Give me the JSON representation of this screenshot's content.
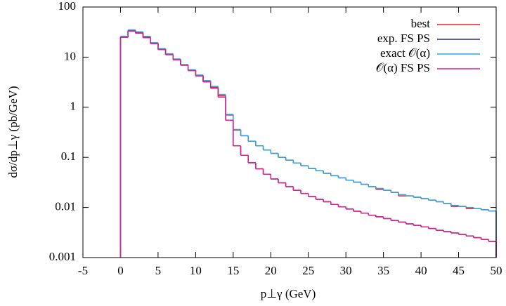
{
  "chart_data": {
    "type": "histogram",
    "xlabel": "p⊥γ (GeV)",
    "ylabel": "dσ/dp⊥γ (pb/GeV)",
    "xlim": [
      -5,
      50
    ],
    "xticks": [
      -5,
      0,
      5,
      10,
      15,
      20,
      25,
      30,
      35,
      40,
      45,
      50
    ],
    "ylim": [
      0.001,
      100
    ],
    "yticks": [
      0.001,
      0.01,
      0.1,
      1,
      10,
      100
    ],
    "ylog": true,
    "legend": "top-right",
    "bins": [
      0,
      1,
      2,
      3,
      4,
      5,
      6,
      7,
      8,
      9,
      10,
      11,
      12,
      13,
      14,
      15,
      16,
      17,
      18,
      19,
      20,
      21,
      22,
      23,
      24,
      25,
      26,
      27,
      28,
      29,
      30,
      31,
      32,
      33,
      34,
      35,
      36,
      37,
      38,
      39,
      40,
      41,
      42,
      43,
      44,
      45,
      46,
      47,
      48,
      49,
      50
    ],
    "series": [
      {
        "name": "best",
        "color": "#e8202a",
        "values": [
          25,
          34,
          31,
          25,
          19,
          14.5,
          11.5,
          9,
          7,
          5.5,
          4.3,
          3.3,
          2.5,
          1.7,
          0.7,
          0.35,
          0.27,
          0.21,
          0.17,
          0.14,
          0.12,
          0.1,
          0.088,
          0.077,
          0.068,
          0.06,
          0.054,
          0.048,
          0.043,
          0.039,
          0.035,
          0.032,
          0.029,
          0.026,
          0.023,
          0.022,
          0.02,
          0.017,
          0.017,
          0.016,
          0.015,
          0.014,
          0.013,
          0.012,
          0.0105,
          0.0105,
          0.0095,
          0.0095,
          0.009,
          0.0085
        ]
      },
      {
        "name": "exp. FS PS",
        "color": "#2a2a8a",
        "values": [
          25,
          33,
          30,
          24.5,
          18.5,
          14.2,
          11.2,
          8.8,
          6.9,
          5.4,
          4.2,
          3.2,
          2.4,
          1.6,
          0.55,
          0.17,
          0.11,
          0.078,
          0.059,
          0.046,
          0.037,
          0.031,
          0.026,
          0.022,
          0.019,
          0.0165,
          0.0145,
          0.013,
          0.0115,
          0.0103,
          0.0093,
          0.0084,
          0.0077,
          0.007,
          0.0065,
          0.006,
          0.0055,
          0.0051,
          0.0047,
          0.0044,
          0.0041,
          0.0038,
          0.0035,
          0.0033,
          0.0031,
          0.0029,
          0.0027,
          0.0025,
          0.0023,
          0.0021
        ]
      },
      {
        "name": "exact 𝒪(α)",
        "color": "#2aa8e0",
        "values": [
          26,
          35,
          32,
          26,
          19.5,
          14.8,
          11.7,
          9.2,
          7.1,
          5.6,
          4.4,
          3.4,
          2.6,
          1.8,
          0.72,
          0.36,
          0.27,
          0.21,
          0.17,
          0.14,
          0.12,
          0.1,
          0.088,
          0.077,
          0.068,
          0.06,
          0.054,
          0.048,
          0.043,
          0.039,
          0.035,
          0.032,
          0.029,
          0.026,
          0.024,
          0.022,
          0.02,
          0.018,
          0.017,
          0.016,
          0.015,
          0.014,
          0.013,
          0.012,
          0.011,
          0.0105,
          0.01,
          0.0095,
          0.009,
          0.0085
        ]
      },
      {
        "name": "𝒪(α) FS PS",
        "color": "#e0208a",
        "values": [
          25,
          33,
          30,
          24.5,
          18.5,
          14.2,
          11.2,
          8.8,
          6.9,
          5.4,
          4.2,
          3.2,
          2.4,
          1.6,
          0.55,
          0.17,
          0.11,
          0.078,
          0.059,
          0.046,
          0.037,
          0.031,
          0.026,
          0.022,
          0.019,
          0.0165,
          0.0145,
          0.013,
          0.0115,
          0.0103,
          0.0093,
          0.0084,
          0.0077,
          0.007,
          0.0065,
          0.006,
          0.0055,
          0.0051,
          0.0047,
          0.0044,
          0.0041,
          0.0038,
          0.0035,
          0.0033,
          0.0031,
          0.0029,
          0.0027,
          0.0025,
          0.0023,
          0.0021
        ]
      }
    ]
  }
}
